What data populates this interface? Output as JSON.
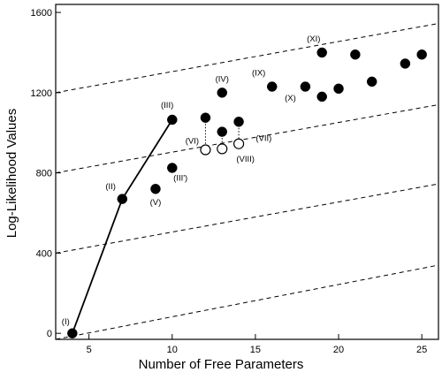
{
  "chart_data": {
    "type": "scatter",
    "xlabel": "Number of Free Parameters",
    "ylabel": "Log-Likelihood Values",
    "xlim": [
      3,
      26
    ],
    "ylim": [
      -30,
      1640
    ],
    "xticks": [
      5,
      10,
      15,
      20,
      25
    ],
    "yticks": [
      0,
      400,
      800,
      1200,
      1600
    ],
    "grid": false,
    "legend": "none",
    "series": [
      {
        "style": "filled",
        "points": [
          {
            "x": 4,
            "y": 0
          },
          {
            "x": 7,
            "y": 670
          },
          {
            "x": 9,
            "y": 720
          },
          {
            "x": 10,
            "y": 825
          },
          {
            "x": 10,
            "y": 1065
          },
          {
            "x": 12,
            "y": 1075
          },
          {
            "x": 13,
            "y": 1005
          },
          {
            "x": 13,
            "y": 1200
          },
          {
            "x": 14,
            "y": 1055
          },
          {
            "x": 16,
            "y": 1230
          },
          {
            "x": 18,
            "y": 1230
          },
          {
            "x": 19,
            "y": 1180
          },
          {
            "x": 19,
            "y": 1400
          },
          {
            "x": 20,
            "y": 1220
          },
          {
            "x": 21,
            "y": 1390
          },
          {
            "x": 22,
            "y": 1255
          },
          {
            "x": 24,
            "y": 1345
          },
          {
            "x": 25,
            "y": 1390
          }
        ]
      },
      {
        "style": "open",
        "points": [
          {
            "x": 12,
            "y": 915
          },
          {
            "x": 13,
            "y": 920
          },
          {
            "x": 14,
            "y": 945
          }
        ]
      }
    ],
    "solid_line": [
      {
        "x": 4,
        "y": 0
      },
      {
        "x": 7,
        "y": 670
      },
      {
        "x": 10,
        "y": 1065
      }
    ],
    "dotted_connectors": [
      {
        "x": 12,
        "y1": 1075,
        "y2": 915
      },
      {
        "x": 13,
        "y1": 1005,
        "y2": 920
      },
      {
        "x": 14,
        "y1": 1055,
        "y2": 945
      }
    ],
    "reference_lines": [
      {
        "style": "dashed",
        "x1": 3,
        "y1": -30,
        "x2": 26,
        "y2": 340
      },
      {
        "style": "dashed",
        "x1": 3,
        "y1": 400,
        "x2": 26,
        "y2": 745
      },
      {
        "style": "dashed",
        "x1": 3,
        "y1": 800,
        "x2": 26,
        "y2": 1140
      },
      {
        "style": "dashed",
        "x1": 3,
        "y1": 1200,
        "x2": 26,
        "y2": 1545
      }
    ],
    "annotations": [
      {
        "text": "(I)",
        "x": 3.6,
        "y": 45
      },
      {
        "text": "(II)",
        "x": 6.3,
        "y": 720
      },
      {
        "text": "(III)",
        "x": 9.7,
        "y": 1125
      },
      {
        "text": "(III')",
        "x": 10.5,
        "y": 760
      },
      {
        "text": "(IV)",
        "x": 13,
        "y": 1255
      },
      {
        "text": "(V)",
        "x": 9,
        "y": 640
      },
      {
        "text": "(VI)",
        "x": 11.2,
        "y": 945
      },
      {
        "text": "(VII)",
        "x": 15.5,
        "y": 960
      },
      {
        "text": "(VIII)",
        "x": 14.4,
        "y": 855
      },
      {
        "text": "(IX)",
        "x": 15.2,
        "y": 1285
      },
      {
        "text": "(X)",
        "x": 17.1,
        "y": 1160
      },
      {
        "text": "(XI)",
        "x": 18.5,
        "y": 1455
      }
    ]
  }
}
